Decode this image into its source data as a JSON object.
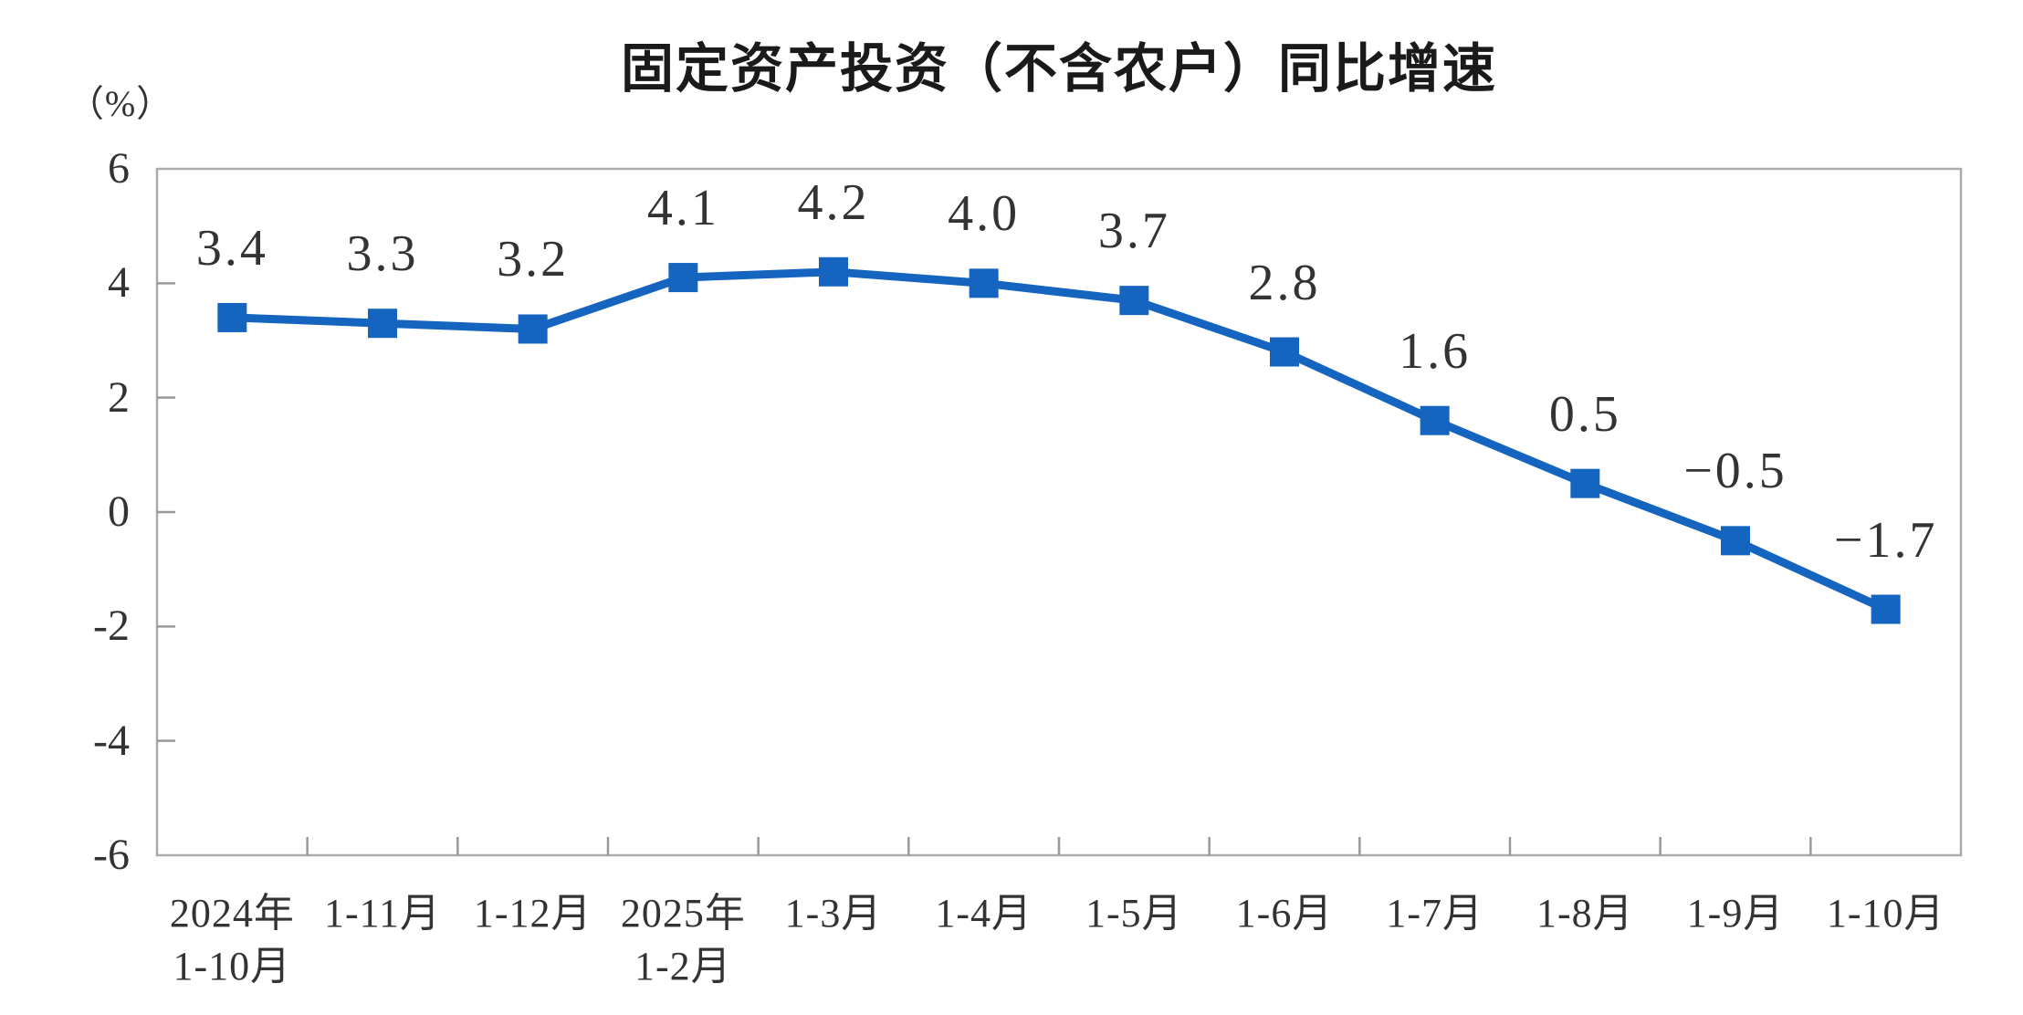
{
  "page": {
    "background": "#ffffff"
  },
  "chart_data": {
    "type": "line",
    "title": "固定资产投资（不含农户）同比增速",
    "unit_label": "（%）",
    "categories": [
      "2024年\n1-10月",
      "1-11月",
      "1-12月",
      "2025年\n1-2月",
      "1-3月",
      "1-4月",
      "1-5月",
      "1-6月",
      "1-7月",
      "1-8月",
      "1-9月",
      "1-10月"
    ],
    "series": [
      {
        "name": "固定资产投资（不含农户）同比增速",
        "values": [
          3.4,
          3.3,
          3.2,
          4.1,
          4.2,
          4.0,
          3.7,
          2.8,
          1.6,
          0.5,
          -0.5,
          -1.7
        ],
        "data_labels": [
          "3.4",
          "3.3",
          "3.2",
          "4.1",
          "4.2",
          "4.0",
          "3.7",
          "2.8",
          "1.6",
          "0.5",
          "−0.5",
          "−1.7"
        ]
      }
    ],
    "ylim": [
      -6,
      6
    ],
    "yticks": [
      6,
      4,
      2,
      0,
      -2,
      -4,
      -6
    ],
    "ytick_labels": [
      "6",
      "4",
      "2",
      "0",
      "-2",
      "-4",
      "-6"
    ],
    "xlabel": "",
    "ylabel": "（%）",
    "grid": false,
    "legend": null,
    "marker": "square",
    "colors": {
      "line": "#1565C0",
      "marker": "#1565C0",
      "plot_border": "#ababab",
      "tick": "#999999",
      "text": "#333333",
      "title_text": "#1a1a1a"
    }
  }
}
